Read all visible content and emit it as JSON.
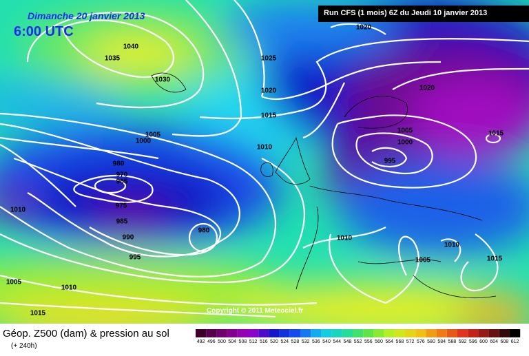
{
  "header": {
    "date": "Dimanche 20 janvier 2013",
    "time": "6:00 UTC",
    "run": "Run CFS (1 mois) 6Z du Jeudi 10 janvier 2013"
  },
  "copyright": "Copyright © 2011 Meteociel.fr",
  "footer": {
    "title": "Géop. Z500 (dam) & pression au sol",
    "lead": "(+ 240h)"
  },
  "scale": [
    492,
    496,
    500,
    504,
    508,
    512,
    516,
    520,
    524,
    528,
    532,
    536,
    540,
    544,
    548,
    552,
    556,
    560,
    564,
    568,
    572,
    576,
    580,
    584,
    588,
    592,
    596,
    600,
    604,
    608,
    612
  ],
  "isobar_labels": [
    "1020",
    "1040",
    "1035",
    "1030",
    "1025",
    "1020",
    "1015",
    "1005",
    "1000",
    "1010",
    "980",
    "970",
    "965",
    "975",
    "985",
    "990",
    "995",
    "980",
    "1010",
    "1005",
    "1010",
    "1015",
    "1020",
    "1005",
    "1000",
    "995",
    "1015",
    "1010",
    "1010",
    "1005",
    "1015"
  ]
}
